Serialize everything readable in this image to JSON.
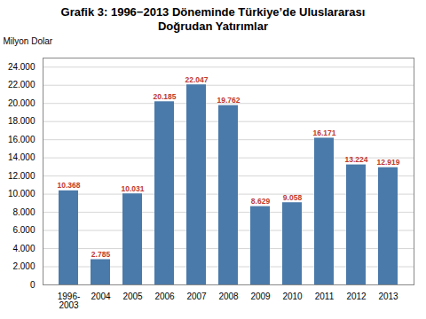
{
  "chart_data": {
    "type": "bar",
    "title": "Grafik 3: 1996−2013 Döneminde Türkiye’de Uluslararası\nDoğrudan Yatırımlar",
    "ylabel": "Milyon Dolar",
    "categories": [
      "1996-\n2003",
      "2004",
      "2005",
      "2006",
      "2007",
      "2008",
      "2009",
      "2010",
      "2011",
      "2012",
      "2013"
    ],
    "values": [
      10368,
      2785,
      10031,
      20185,
      22047,
      19762,
      8629,
      9058,
      16171,
      13224,
      12919
    ],
    "value_labels": [
      "10.368",
      "2.785",
      "10.031",
      "20.185",
      "22.047",
      "19.762",
      "8.629",
      "9.058",
      "16.171",
      "13.224",
      "12.919"
    ],
    "data_labels": true,
    "color": "#4a7aaa",
    "ylim": [
      0,
      25000
    ],
    "yticks": [
      0,
      {
        "value": 2000,
        "label": "2.000"
      },
      {
        "value": 4000,
        "label": "4.000"
      },
      {
        "value": 6000,
        "label": "6.000"
      },
      {
        "value": 8000,
        "label": "8.000"
      },
      {
        "value": 10000,
        "label": "10.000"
      },
      {
        "value": 12000,
        "label": "12.000"
      },
      {
        "value": 14000,
        "label": "14.000"
      },
      {
        "value": 16000,
        "label": "16.000"
      },
      {
        "value": 18000,
        "label": "18.000"
      },
      {
        "value": 20000,
        "label": "20.000"
      },
      {
        "value": 22000,
        "label": "22.000"
      },
      {
        "value": 24000,
        "label": "24.000"
      }
    ],
    "grid": true
  }
}
